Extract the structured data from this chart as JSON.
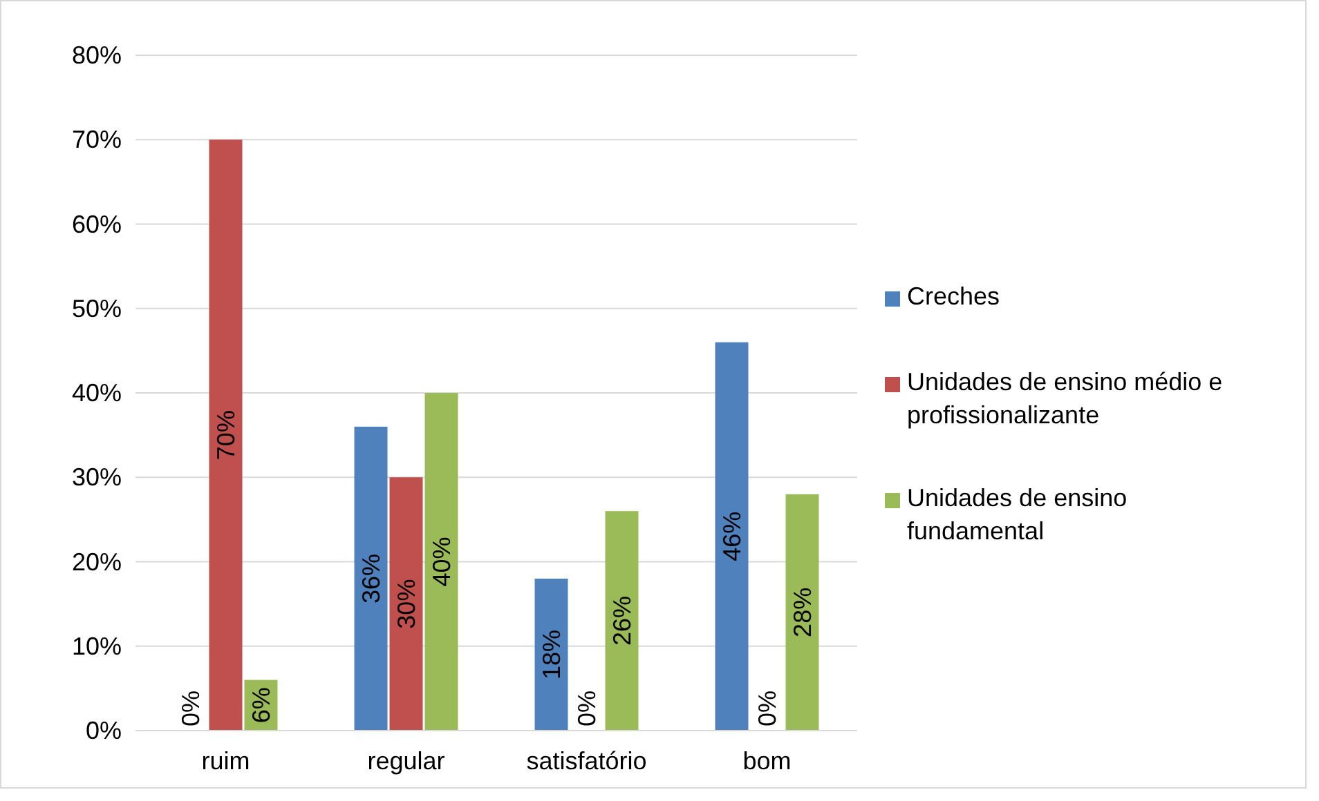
{
  "chart_data": {
    "type": "bar",
    "categories": [
      "ruim",
      "regular",
      "satisfatório",
      "bom"
    ],
    "series": [
      {
        "name": "Creches",
        "color": "#4f81bd",
        "values": [
          0,
          36,
          18,
          46
        ]
      },
      {
        "name": "Unidades de ensino médio e profissionalizante",
        "color": "#c0504d",
        "values": [
          70,
          30,
          0,
          0
        ]
      },
      {
        "name": "Unidades de ensino fundamental",
        "color": "#9bbb59",
        "values": [
          6,
          40,
          26,
          28
        ]
      }
    ],
    "ylim": [
      0,
      80
    ],
    "yticks": [
      {
        "value": 0,
        "label": "0%"
      },
      {
        "value": 10,
        "label": "10%"
      },
      {
        "value": 20,
        "label": "20%"
      },
      {
        "value": 30,
        "label": "30%"
      },
      {
        "value": 40,
        "label": "40%"
      },
      {
        "value": 50,
        "label": "50%"
      },
      {
        "value": 60,
        "label": "60%"
      },
      {
        "value": 70,
        "label": "70%"
      },
      {
        "value": 80,
        "label": "80%"
      }
    ],
    "value_labels": [
      [
        "0%",
        "36%",
        "18%",
        "46%"
      ],
      [
        "70%",
        "30%",
        "0%",
        "0%"
      ],
      [
        "6%",
        "40%",
        "26%",
        "28%"
      ]
    ],
    "grid": "y",
    "legend": "right"
  }
}
